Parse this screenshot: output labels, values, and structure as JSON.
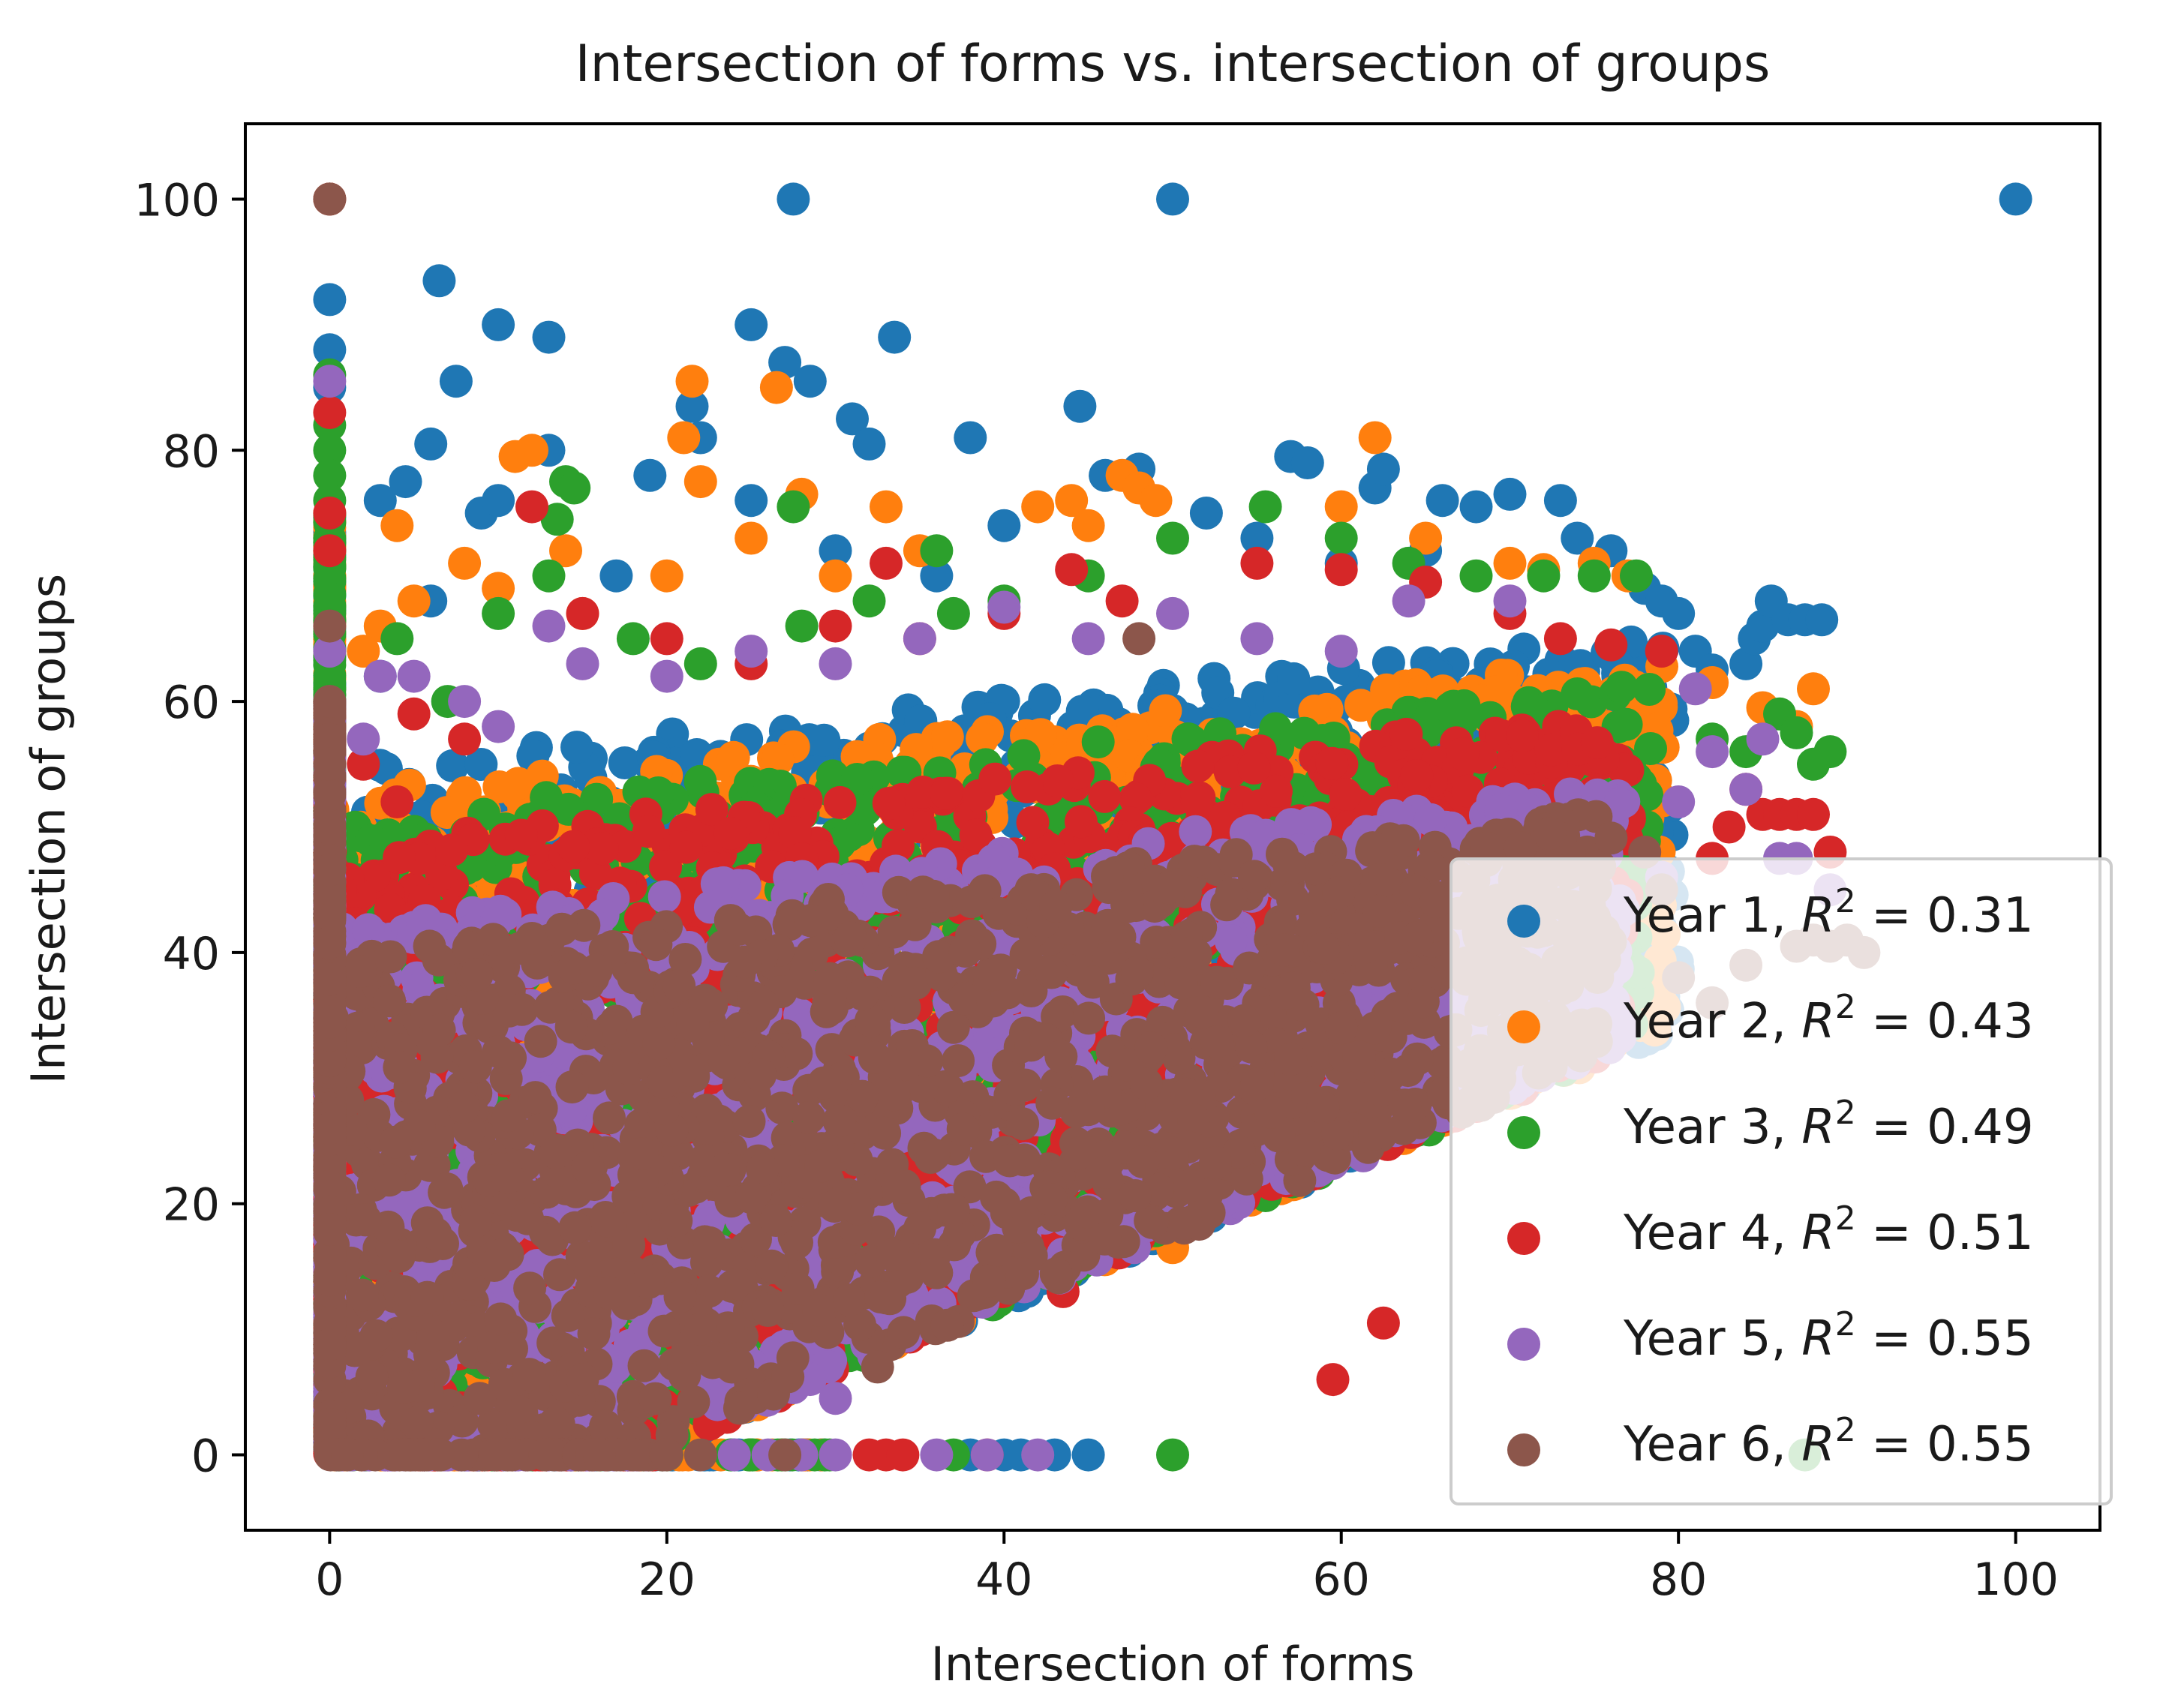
{
  "chart_data": {
    "type": "scatter",
    "title": "Intersection of forms vs. intersection of groups",
    "xlabel": "Intersection of forms",
    "ylabel": "Intersection of groups",
    "xlim": [
      -5,
      105
    ],
    "ylim": [
      -6,
      106
    ],
    "xticks": [
      0,
      20,
      40,
      60,
      80,
      100
    ],
    "yticks": [
      0,
      20,
      40,
      60,
      80,
      100
    ],
    "xtick_labels": [
      "0",
      "20",
      "40",
      "60",
      "80",
      "100"
    ],
    "ytick_labels": [
      "0",
      "20",
      "40",
      "60",
      "80",
      "100"
    ],
    "legend_position": "lower-right",
    "series": [
      {
        "name": "Year 1",
        "r2_label": "= 0.31",
        "color": "#1f77b4",
        "points": [
          [
            0,
            100
          ],
          [
            27.5,
            100
          ],
          [
            50,
            100
          ],
          [
            100,
            100
          ],
          [
            0,
            92
          ],
          [
            0,
            88
          ],
          [
            0,
            85
          ],
          [
            6.5,
            93.5
          ],
          [
            10,
            90
          ],
          [
            13,
            89
          ],
          [
            7.5,
            85.5
          ],
          [
            25,
            90
          ],
          [
            27,
            87
          ],
          [
            28.5,
            85.5
          ],
          [
            33.5,
            89
          ],
          [
            44.5,
            83.5
          ],
          [
            21.5,
            83.5
          ],
          [
            22,
            81
          ],
          [
            31,
            82.5
          ],
          [
            32,
            80.5
          ],
          [
            13,
            80
          ],
          [
            19,
            78
          ],
          [
            6,
            80.5
          ],
          [
            38,
            81
          ],
          [
            3,
            76
          ],
          [
            4.5,
            77.5
          ],
          [
            9,
            75
          ],
          [
            10,
            76
          ],
          [
            25,
            76
          ],
          [
            46,
            78
          ],
          [
            48,
            78.5
          ],
          [
            57,
            79.5
          ],
          [
            58,
            79
          ],
          [
            62,
            77
          ],
          [
            62.5,
            78.5
          ],
          [
            66,
            76
          ],
          [
            68,
            75.5
          ],
          [
            70,
            76.5
          ],
          [
            73,
            76
          ],
          [
            74,
            73
          ],
          [
            76,
            72
          ],
          [
            78,
            69
          ],
          [
            79,
            68
          ],
          [
            80,
            67
          ],
          [
            81,
            64
          ],
          [
            82,
            62.5
          ],
          [
            84,
            63
          ],
          [
            84.5,
            65
          ],
          [
            85,
            66
          ],
          [
            85.5,
            68
          ],
          [
            86.5,
            66.5
          ],
          [
            87.5,
            66.5
          ],
          [
            88.5,
            66.5
          ],
          [
            36,
            70
          ],
          [
            40,
            74
          ],
          [
            52,
            75
          ],
          [
            55,
            73
          ],
          [
            60,
            71
          ],
          [
            65,
            72
          ],
          [
            3,
            62
          ],
          [
            6,
            68
          ],
          [
            17,
            70
          ],
          [
            30,
            72
          ],
          [
            40,
            20
          ],
          [
            54,
            31
          ],
          [
            45,
            0
          ],
          [
            43,
            0
          ],
          [
            41,
            0
          ],
          [
            40,
            0
          ],
          [
            38,
            0
          ],
          [
            19,
            8
          ],
          [
            53,
            36
          ]
        ]
      },
      {
        "name": "Year 2",
        "r2_label": "= 0.43",
        "color": "#ff7f0e",
        "points": [
          [
            0,
            100
          ],
          [
            21.5,
            85.5
          ],
          [
            26.5,
            85
          ],
          [
            62,
            81
          ],
          [
            21,
            81
          ],
          [
            22,
            77.5
          ],
          [
            11,
            79.5
          ],
          [
            12,
            80
          ],
          [
            28,
            76.5
          ],
          [
            33,
            75.5
          ],
          [
            47,
            78
          ],
          [
            48,
            77
          ],
          [
            49,
            76
          ],
          [
            4,
            74
          ],
          [
            8,
            71
          ],
          [
            14,
            72
          ],
          [
            20,
            70
          ],
          [
            25,
            73
          ],
          [
            30,
            70
          ],
          [
            35,
            72
          ],
          [
            42,
            75.5
          ],
          [
            44,
            76
          ],
          [
            45,
            74
          ],
          [
            60,
            75.5
          ],
          [
            65,
            73
          ],
          [
            70,
            71
          ],
          [
            72,
            70.5
          ],
          [
            75,
            71
          ],
          [
            77,
            70
          ],
          [
            3,
            66
          ],
          [
            5,
            68
          ],
          [
            10,
            69
          ],
          [
            15,
            67
          ],
          [
            82,
            61.5
          ],
          [
            85,
            59.5
          ],
          [
            87,
            58
          ],
          [
            88,
            61
          ],
          [
            2,
            64
          ],
          [
            0,
            70
          ],
          [
            0,
            75
          ],
          [
            57,
            28.5
          ],
          [
            62,
            28.5
          ],
          [
            50,
            16.5
          ],
          [
            42,
            21
          ],
          [
            38,
            26
          ],
          [
            31,
            15.5
          ],
          [
            18,
            40
          ],
          [
            24,
            28
          ],
          [
            45,
            29
          ],
          [
            47,
            30
          ]
        ]
      },
      {
        "name": "Year 3",
        "r2_label": "= 0.49",
        "color": "#2ca02c",
        "points": [
          [
            0,
            86
          ],
          [
            0,
            82
          ],
          [
            0,
            80
          ],
          [
            0,
            78
          ],
          [
            0,
            76
          ],
          [
            14,
            77.5
          ],
          [
            14.5,
            77
          ],
          [
            13.5,
            74.5
          ],
          [
            27.5,
            75.5
          ],
          [
            55.5,
            75.5
          ],
          [
            50,
            73
          ],
          [
            36,
            72
          ],
          [
            40,
            68
          ],
          [
            45,
            70
          ],
          [
            60,
            73
          ],
          [
            64,
            71
          ],
          [
            68,
            70
          ],
          [
            72,
            70
          ],
          [
            75,
            70
          ],
          [
            77.5,
            70
          ],
          [
            10,
            67
          ],
          [
            13,
            70
          ],
          [
            18,
            65
          ],
          [
            22,
            63
          ],
          [
            28,
            66
          ],
          [
            32,
            68
          ],
          [
            37,
            67
          ],
          [
            7,
            60
          ],
          [
            82,
            57
          ],
          [
            84,
            56
          ],
          [
            86,
            59
          ],
          [
            87,
            57.5
          ],
          [
            88,
            55
          ],
          [
            89,
            56
          ],
          [
            50,
            0
          ],
          [
            87.5,
            0
          ],
          [
            37,
            0
          ],
          [
            31,
            12.5
          ],
          [
            37,
            11
          ],
          [
            51,
            25.5
          ],
          [
            45,
            22.5
          ],
          [
            4,
            65
          ],
          [
            0,
            60
          ]
        ]
      },
      {
        "name": "Year 4",
        "r2_label": "= 0.51",
        "color": "#d62728",
        "points": [
          [
            0,
            100
          ],
          [
            0,
            83
          ],
          [
            0,
            75
          ],
          [
            0,
            72
          ],
          [
            12,
            75.5
          ],
          [
            33,
            71
          ],
          [
            44,
            70.5
          ],
          [
            55,
            71
          ],
          [
            60,
            70.5
          ],
          [
            65,
            69.5
          ],
          [
            70,
            67
          ],
          [
            73,
            65
          ],
          [
            76,
            64.5
          ],
          [
            79,
            64
          ],
          [
            15,
            67
          ],
          [
            20,
            65
          ],
          [
            25,
            63
          ],
          [
            30,
            66
          ],
          [
            35,
            65
          ],
          [
            40,
            67
          ],
          [
            47,
            68
          ],
          [
            5,
            59
          ],
          [
            8,
            57
          ],
          [
            84,
            53
          ],
          [
            85,
            51
          ],
          [
            86,
            51
          ],
          [
            87,
            51
          ],
          [
            88,
            51
          ],
          [
            89,
            48
          ],
          [
            82,
            47.5
          ],
          [
            83,
            50
          ],
          [
            59.5,
            6
          ],
          [
            62.5,
            10.5
          ],
          [
            53.5,
            21.5
          ],
          [
            47,
            18
          ],
          [
            43.5,
            13
          ],
          [
            37,
            11.5
          ],
          [
            23,
            7.5
          ],
          [
            35,
            15.5
          ],
          [
            40,
            25
          ],
          [
            44,
            26
          ],
          [
            32,
            0
          ],
          [
            33,
            0
          ],
          [
            34,
            0
          ],
          [
            39,
            0
          ],
          [
            2,
            55
          ],
          [
            4,
            52
          ]
        ]
      },
      {
        "name": "Year 5",
        "r2_label": "= 0.55",
        "color": "#9467bd",
        "points": [
          [
            0,
            85.5
          ],
          [
            0,
            64
          ],
          [
            13,
            66
          ],
          [
            40,
            67.5
          ],
          [
            50,
            67
          ],
          [
            64,
            68
          ],
          [
            70,
            68
          ],
          [
            3,
            62
          ],
          [
            5,
            62
          ],
          [
            8,
            60
          ],
          [
            10,
            58
          ],
          [
            15,
            63
          ],
          [
            20,
            62
          ],
          [
            25,
            64
          ],
          [
            30,
            63
          ],
          [
            35,
            65
          ],
          [
            45,
            65
          ],
          [
            55,
            65
          ],
          [
            60,
            64
          ],
          [
            81,
            61
          ],
          [
            82,
            56
          ],
          [
            84,
            53
          ],
          [
            85,
            57
          ],
          [
            86,
            47.5
          ],
          [
            87,
            47.5
          ],
          [
            89,
            45
          ],
          [
            80,
            52
          ],
          [
            79,
            46
          ],
          [
            0,
            57
          ],
          [
            2,
            57
          ],
          [
            28,
            0
          ],
          [
            30,
            0
          ],
          [
            36,
            0
          ],
          [
            39,
            0
          ],
          [
            42,
            0
          ],
          [
            24,
            0
          ],
          [
            26,
            0
          ],
          [
            23,
            4
          ],
          [
            19,
            5.5
          ],
          [
            27.5,
            9
          ],
          [
            28.5,
            6
          ],
          [
            30,
            4.5
          ],
          [
            31,
            14.5
          ],
          [
            48,
            28
          ],
          [
            52,
            32.5
          ],
          [
            40,
            22
          ],
          [
            36,
            18
          ]
        ]
      },
      {
        "name": "Year 6",
        "r2_label": "= 0.55",
        "color": "#8c564b",
        "points": [
          [
            0,
            100
          ],
          [
            0,
            66
          ],
          [
            0,
            60
          ],
          [
            0,
            55
          ],
          [
            48,
            65
          ],
          [
            87,
            40.5
          ],
          [
            88,
            41
          ],
          [
            89,
            40.5
          ],
          [
            90,
            41
          ],
          [
            91,
            40
          ],
          [
            80,
            38
          ],
          [
            82,
            36
          ],
          [
            84,
            39
          ],
          [
            79,
            45
          ],
          [
            78,
            48
          ],
          [
            27,
            0
          ],
          [
            22,
            0
          ],
          [
            20,
            0
          ],
          [
            18,
            0
          ],
          [
            16,
            0
          ],
          [
            32.5,
            7
          ],
          [
            22,
            10
          ],
          [
            26,
            11.5
          ],
          [
            29,
            11.5
          ],
          [
            33,
            12.5
          ],
          [
            36,
            14.5
          ],
          [
            37,
            19.5
          ],
          [
            50,
            24
          ],
          [
            55,
            29.5
          ],
          [
            57,
            31.5
          ],
          [
            60,
            34
          ],
          [
            62,
            34
          ],
          [
            45,
            27.5
          ],
          [
            46,
            22.5
          ],
          [
            40,
            20
          ],
          [
            14,
            5.5
          ],
          [
            15,
            6
          ]
        ]
      }
    ],
    "dense_region_note": "Very dense overlapping clusters fill roughly x 0–80, y between 0.2x and 0.32x+45 for every year"
  }
}
